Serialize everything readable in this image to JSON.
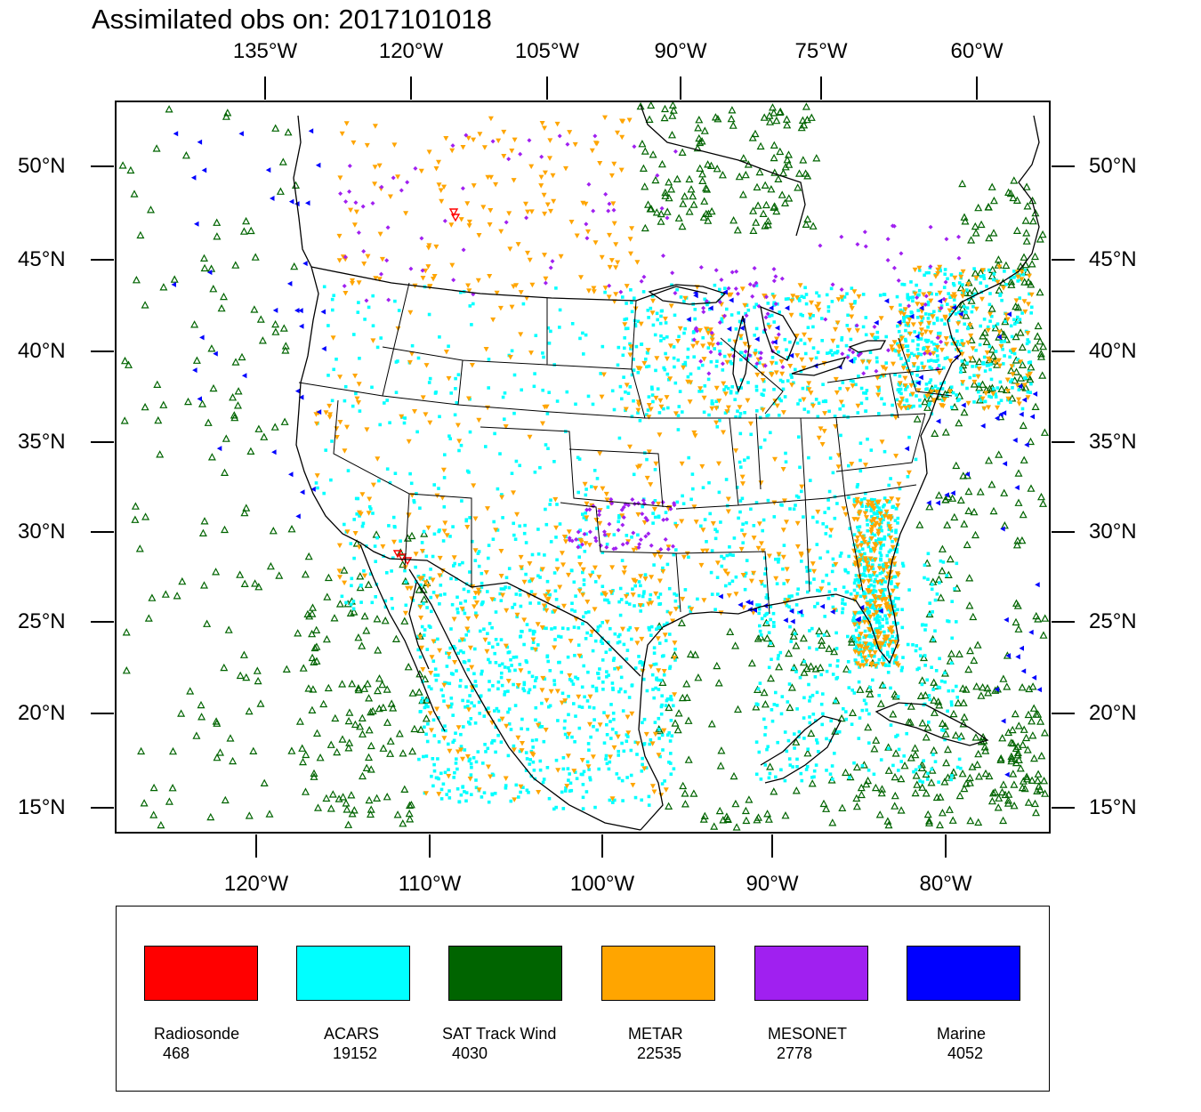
{
  "title": "Assimilated obs on: 2017101018",
  "axes": {
    "top_lon_labels": [
      "135°W",
      "120°W",
      "105°W",
      "90°W",
      "75°W",
      "60°W"
    ],
    "bottom_lon_labels": [
      "120°W",
      "110°W",
      "100°W",
      "90°W",
      "80°W"
    ],
    "lat_labels": [
      "50°N",
      "45°N",
      "40°N",
      "35°N",
      "30°N",
      "25°N",
      "20°N",
      "15°N"
    ]
  },
  "legend": [
    {
      "name": "Radiosonde",
      "count": "468",
      "color": "#ff0000"
    },
    {
      "name": "ACARS",
      "count": "19152",
      "color": "#00ffff"
    },
    {
      "name": "SAT Track Wind",
      "count": "4030",
      "color": "#006400"
    },
    {
      "name": "METAR",
      "count": "22535",
      "color": "#ffa500"
    },
    {
      "name": "MESONET",
      "count": "2778",
      "color": "#a020f0"
    },
    {
      "name": "Marine",
      "count": "4052",
      "color": "#0000ff"
    }
  ],
  "colors": {
    "radiosonde": "#ff0000",
    "acars": "#00ffff",
    "sat_track_wind": "#006400",
    "metar": "#ffa500",
    "mesonet": "#a020f0",
    "marine": "#0000ff"
  }
}
